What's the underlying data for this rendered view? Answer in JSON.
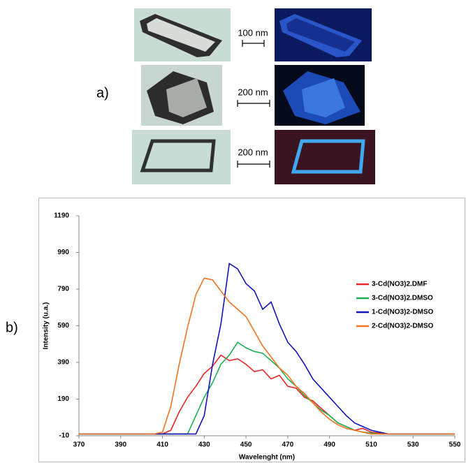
{
  "panel_a": {
    "label": "a)",
    "scale_bars": [
      "100 nm",
      "200 nm",
      "200 nm"
    ]
  },
  "panel_b_label": "b)",
  "chart_data": {
    "type": "line",
    "x_label": "Wavelenght (nm)",
    "y_label": "Intensity  (u.a.)",
    "x": [
      370,
      374,
      378,
      382,
      386,
      390,
      394,
      398,
      402,
      406,
      410,
      414,
      418,
      422,
      426,
      430,
      434,
      438,
      442,
      446,
      450,
      454,
      458,
      462,
      466,
      470,
      474,
      478,
      482,
      486,
      490,
      494,
      498,
      502,
      506,
      510,
      514,
      518,
      522,
      526,
      530,
      534,
      538,
      542,
      546,
      550
    ],
    "series": [
      {
        "name": "3-Cd(NO3)2.DMF",
        "color": "#e8262a",
        "values": [
          0,
          0,
          0,
          0,
          0,
          0,
          0,
          0,
          0,
          0,
          0,
          20,
          120,
          200,
          260,
          330,
          370,
          430,
          400,
          410,
          380,
          340,
          350,
          300,
          320,
          260,
          250,
          200,
          180,
          140,
          100,
          60,
          40,
          20,
          30,
          10,
          5,
          0,
          0,
          0,
          0,
          0,
          0,
          0,
          0,
          0
        ]
      },
      {
        "name": "3-Cd(NO3)2.DMSO",
        "color": "#1db052",
        "values": [
          0,
          0,
          0,
          0,
          0,
          0,
          0,
          0,
          0,
          0,
          0,
          0,
          0,
          0,
          100,
          200,
          280,
          380,
          430,
          500,
          470,
          450,
          440,
          400,
          360,
          300,
          260,
          210,
          170,
          130,
          100,
          60,
          40,
          20,
          10,
          5,
          0,
          0,
          0,
          0,
          0,
          0,
          0,
          0,
          0,
          0
        ]
      },
      {
        "name": "1-Cd(NO3)2-DMSO",
        "color": "#1414b8",
        "values": [
          0,
          0,
          0,
          0,
          0,
          0,
          0,
          0,
          0,
          0,
          0,
          0,
          0,
          0,
          0,
          100,
          380,
          600,
          930,
          900,
          820,
          780,
          680,
          720,
          600,
          500,
          450,
          380,
          300,
          250,
          200,
          150,
          100,
          60,
          40,
          20,
          10,
          0,
          0,
          0,
          0,
          0,
          0,
          0,
          0,
          0
        ]
      },
      {
        "name": "2-Cd(NO3)2-DMSO",
        "color": "#f07422",
        "values": [
          0,
          0,
          0,
          0,
          0,
          0,
          0,
          0,
          0,
          0,
          10,
          150,
          380,
          580,
          760,
          850,
          840,
          780,
          720,
          680,
          640,
          560,
          480,
          420,
          360,
          320,
          260,
          220,
          170,
          120,
          80,
          50,
          30,
          20,
          10,
          0,
          0,
          0,
          0,
          0,
          0,
          0,
          0,
          0,
          0,
          0
        ]
      }
    ],
    "xlim": [
      370,
      550
    ],
    "xticks": [
      370,
      390,
      410,
      430,
      450,
      470,
      490,
      510,
      530,
      550
    ],
    "ylim": [
      -10,
      1190
    ],
    "yticks": [
      -10,
      190,
      390,
      590,
      790,
      990,
      1190
    ],
    "grid": false,
    "legend": "right"
  }
}
